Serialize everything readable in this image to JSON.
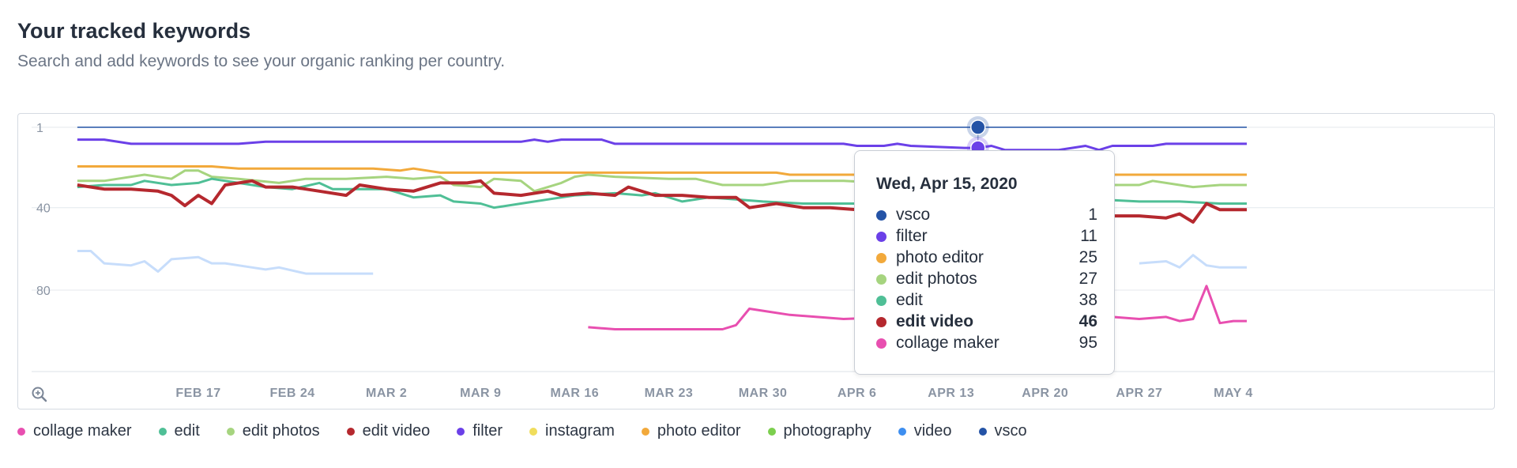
{
  "header": {
    "title": "Your tracked keywords",
    "subtitle": "Search and add keywords to see your organic ranking per country."
  },
  "zoom_icon": "zoom-in-icon",
  "tooltip": {
    "date": "Wed, Apr 15, 2020",
    "rows": [
      {
        "name": "vsco",
        "value": "1",
        "color": "#2453a6",
        "bold": false
      },
      {
        "name": "filter",
        "value": "11",
        "color": "#6b40e8",
        "bold": false
      },
      {
        "name": "photo editor",
        "value": "25",
        "color": "#f2a93b",
        "bold": false
      },
      {
        "name": "edit photos",
        "value": "27",
        "color": "#a6d47f",
        "bold": false
      },
      {
        "name": "edit",
        "value": "38",
        "color": "#4fbf96",
        "bold": false
      },
      {
        "name": "edit video",
        "value": "46",
        "color": "#b5282e",
        "bold": true
      },
      {
        "name": "collage maker",
        "value": "95",
        "color": "#e84fb0",
        "bold": false
      }
    ]
  },
  "legend": [
    {
      "name": "collage maker",
      "color": "#e84fb0"
    },
    {
      "name": "edit",
      "color": "#4fbf96"
    },
    {
      "name": "edit photos",
      "color": "#a6d47f"
    },
    {
      "name": "edit video",
      "color": "#b5282e"
    },
    {
      "name": "filter",
      "color": "#6b40e8"
    },
    {
      "name": "instagram",
      "color": "#f0dd5c"
    },
    {
      "name": "photo editor",
      "color": "#f2a93b"
    },
    {
      "name": "photography",
      "color": "#7ccf4e"
    },
    {
      "name": "video",
      "color": "#3d8ef0"
    },
    {
      "name": "vsco",
      "color": "#2453a6"
    }
  ],
  "chart_data": {
    "type": "line",
    "x_type": "date",
    "x_start": "2020-02-08",
    "x_end": "2020-05-05",
    "xticks": [
      {
        "date": "2020-02-17",
        "label": "FEB 17"
      },
      {
        "date": "2020-02-24",
        "label": "FEB 24"
      },
      {
        "date": "2020-03-02",
        "label": "MAR 2"
      },
      {
        "date": "2020-03-09",
        "label": "MAR 9"
      },
      {
        "date": "2020-03-16",
        "label": "MAR 16"
      },
      {
        "date": "2020-03-23",
        "label": "MAR 23"
      },
      {
        "date": "2020-03-30",
        "label": "MAR 30"
      },
      {
        "date": "2020-04-06",
        "label": "APR 6"
      },
      {
        "date": "2020-04-13",
        "label": "APR 13"
      },
      {
        "date": "2020-04-20",
        "label": "APR 20"
      },
      {
        "date": "2020-04-27",
        "label": "APR 27"
      },
      {
        "date": "2020-05-04",
        "label": "MAY 4"
      }
    ],
    "y_reversed": true,
    "ylim": [
      1,
      120
    ],
    "yticks": [
      1,
      40,
      80
    ],
    "hover_date": "2020-04-15",
    "series": [
      {
        "name": "vsco",
        "color": "#2453a6",
        "width": 1.5,
        "points": [
          [
            "2020-02-08",
            1
          ],
          [
            "2020-05-05",
            1
          ]
        ]
      },
      {
        "name": "filter",
        "color": "#6b40e8",
        "width": 3,
        "points": [
          [
            "2020-02-08",
            7
          ],
          [
            "2020-02-10",
            7
          ],
          [
            "2020-02-12",
            9
          ],
          [
            "2020-02-20",
            9
          ],
          [
            "2020-02-22",
            8
          ],
          [
            "2020-03-12",
            8
          ],
          [
            "2020-03-13",
            7
          ],
          [
            "2020-03-14",
            8
          ],
          [
            "2020-03-15",
            7
          ],
          [
            "2020-03-18",
            7
          ],
          [
            "2020-03-19",
            9
          ],
          [
            "2020-04-05",
            9
          ],
          [
            "2020-04-06",
            10
          ],
          [
            "2020-04-08",
            10
          ],
          [
            "2020-04-09",
            9
          ],
          [
            "2020-04-10",
            10
          ],
          [
            "2020-04-14",
            11
          ],
          [
            "2020-04-15",
            11
          ],
          [
            "2020-04-16",
            10
          ],
          [
            "2020-04-17",
            12
          ],
          [
            "2020-04-20",
            12
          ],
          [
            "2020-04-21",
            12
          ],
          [
            "2020-04-22",
            11
          ],
          [
            "2020-04-23",
            10
          ],
          [
            "2020-04-24",
            12
          ],
          [
            "2020-04-25",
            10
          ],
          [
            "2020-04-28",
            10
          ],
          [
            "2020-04-29",
            9
          ],
          [
            "2020-05-05",
            9
          ]
        ]
      },
      {
        "name": "photo editor",
        "color": "#f2a93b",
        "width": 3,
        "points": [
          [
            "2020-02-08",
            20
          ],
          [
            "2020-02-18",
            20
          ],
          [
            "2020-02-20",
            21
          ],
          [
            "2020-03-01",
            21
          ],
          [
            "2020-03-03",
            22
          ],
          [
            "2020-03-04",
            21
          ],
          [
            "2020-03-06",
            23
          ],
          [
            "2020-03-31",
            23
          ],
          [
            "2020-04-01",
            24
          ],
          [
            "2020-04-10",
            24
          ],
          [
            "2020-04-15",
            25
          ],
          [
            "2020-04-19",
            25
          ],
          [
            "2020-04-20",
            23
          ],
          [
            "2020-04-21",
            24
          ],
          [
            "2020-05-05",
            24
          ]
        ]
      },
      {
        "name": "edit photos",
        "color": "#a6d47f",
        "width": 3,
        "points": [
          [
            "2020-02-08",
            27
          ],
          [
            "2020-02-10",
            27
          ],
          [
            "2020-02-11",
            26
          ],
          [
            "2020-02-13",
            24
          ],
          [
            "2020-02-15",
            26
          ],
          [
            "2020-02-16",
            22
          ],
          [
            "2020-02-17",
            22
          ],
          [
            "2020-02-18",
            25
          ],
          [
            "2020-02-20",
            26
          ],
          [
            "2020-02-23",
            28
          ],
          [
            "2020-02-25",
            26
          ],
          [
            "2020-02-28",
            26
          ],
          [
            "2020-03-02",
            25
          ],
          [
            "2020-03-04",
            26
          ],
          [
            "2020-03-06",
            25
          ],
          [
            "2020-03-07",
            29
          ],
          [
            "2020-03-09",
            30
          ],
          [
            "2020-03-10",
            26
          ],
          [
            "2020-03-12",
            27
          ],
          [
            "2020-03-13",
            32
          ],
          [
            "2020-03-15",
            28
          ],
          [
            "2020-03-16",
            25
          ],
          [
            "2020-03-17",
            24
          ],
          [
            "2020-03-19",
            25
          ],
          [
            "2020-03-23",
            26
          ],
          [
            "2020-03-25",
            26
          ],
          [
            "2020-03-27",
            29
          ],
          [
            "2020-03-30",
            29
          ],
          [
            "2020-04-01",
            27
          ],
          [
            "2020-04-05",
            27
          ],
          [
            "2020-04-08",
            28
          ],
          [
            "2020-04-12",
            29
          ],
          [
            "2020-04-13",
            30
          ],
          [
            "2020-04-15",
            27
          ],
          [
            "2020-04-16",
            25
          ],
          [
            "2020-04-17",
            23
          ],
          [
            "2020-04-19",
            26
          ],
          [
            "2020-04-21",
            30
          ],
          [
            "2020-04-23",
            31
          ],
          [
            "2020-04-25",
            29
          ],
          [
            "2020-04-27",
            29
          ],
          [
            "2020-04-28",
            27
          ],
          [
            "2020-04-30",
            29
          ],
          [
            "2020-05-01",
            30
          ],
          [
            "2020-05-03",
            29
          ],
          [
            "2020-05-05",
            29
          ]
        ]
      },
      {
        "name": "edit",
        "color": "#4fbf96",
        "width": 3,
        "points": [
          [
            "2020-02-08",
            30
          ],
          [
            "2020-02-10",
            29
          ],
          [
            "2020-02-12",
            29
          ],
          [
            "2020-02-13",
            27
          ],
          [
            "2020-02-15",
            29
          ],
          [
            "2020-02-17",
            28
          ],
          [
            "2020-02-18",
            26
          ],
          [
            "2020-02-20",
            28
          ],
          [
            "2020-02-22",
            30
          ],
          [
            "2020-02-24",
            31
          ],
          [
            "2020-02-26",
            28
          ],
          [
            "2020-02-27",
            31
          ],
          [
            "2020-03-02",
            31
          ],
          [
            "2020-03-04",
            35
          ],
          [
            "2020-03-06",
            34
          ],
          [
            "2020-03-07",
            37
          ],
          [
            "2020-03-09",
            38
          ],
          [
            "2020-03-10",
            40
          ],
          [
            "2020-03-12",
            38
          ],
          [
            "2020-03-14",
            36
          ],
          [
            "2020-03-16",
            34
          ],
          [
            "2020-03-19",
            33
          ],
          [
            "2020-03-21",
            34
          ],
          [
            "2020-03-22",
            33
          ],
          [
            "2020-03-24",
            37
          ],
          [
            "2020-03-26",
            35
          ],
          [
            "2020-03-28",
            36
          ],
          [
            "2020-03-30",
            37
          ],
          [
            "2020-04-02",
            38
          ],
          [
            "2020-04-06",
            38
          ],
          [
            "2020-04-10",
            37
          ],
          [
            "2020-04-13",
            38
          ],
          [
            "2020-04-15",
            38
          ],
          [
            "2020-04-18",
            37
          ],
          [
            "2020-04-21",
            37
          ],
          [
            "2020-04-24",
            36
          ],
          [
            "2020-04-27",
            37
          ],
          [
            "2020-04-30",
            37
          ],
          [
            "2020-05-03",
            38
          ],
          [
            "2020-05-05",
            38
          ]
        ]
      },
      {
        "name": "edit video",
        "color": "#b5282e",
        "width": 4,
        "points": [
          [
            "2020-02-08",
            29
          ],
          [
            "2020-02-10",
            31
          ],
          [
            "2020-02-12",
            31
          ],
          [
            "2020-02-14",
            32
          ],
          [
            "2020-02-15",
            34
          ],
          [
            "2020-02-16",
            39
          ],
          [
            "2020-02-17",
            34
          ],
          [
            "2020-02-18",
            38
          ],
          [
            "2020-02-19",
            29
          ],
          [
            "2020-02-21",
            27
          ],
          [
            "2020-02-22",
            30
          ],
          [
            "2020-02-24",
            30
          ],
          [
            "2020-02-26",
            32
          ],
          [
            "2020-02-28",
            34
          ],
          [
            "2020-02-29",
            29
          ],
          [
            "2020-03-02",
            31
          ],
          [
            "2020-03-04",
            32
          ],
          [
            "2020-03-06",
            28
          ],
          [
            "2020-03-08",
            28
          ],
          [
            "2020-03-09",
            27
          ],
          [
            "2020-03-10",
            33
          ],
          [
            "2020-03-12",
            34
          ],
          [
            "2020-03-14",
            32
          ],
          [
            "2020-03-15",
            34
          ],
          [
            "2020-03-17",
            33
          ],
          [
            "2020-03-19",
            34
          ],
          [
            "2020-03-20",
            30
          ],
          [
            "2020-03-22",
            34
          ],
          [
            "2020-03-24",
            34
          ],
          [
            "2020-03-26",
            35
          ],
          [
            "2020-03-28",
            35
          ],
          [
            "2020-03-29",
            40
          ],
          [
            "2020-03-31",
            38
          ],
          [
            "2020-04-02",
            40
          ],
          [
            "2020-04-04",
            40
          ],
          [
            "2020-04-06",
            41
          ],
          [
            "2020-04-08",
            43
          ],
          [
            "2020-04-10",
            44
          ],
          [
            "2020-04-12",
            45
          ],
          [
            "2020-04-14",
            45
          ],
          [
            "2020-04-15",
            46
          ],
          [
            "2020-04-16",
            41
          ],
          [
            "2020-04-17",
            44
          ],
          [
            "2020-04-19",
            44
          ],
          [
            "2020-04-21",
            42
          ],
          [
            "2020-04-23",
            43
          ],
          [
            "2020-04-25",
            44
          ],
          [
            "2020-04-27",
            44
          ],
          [
            "2020-04-29",
            45
          ],
          [
            "2020-04-30",
            43
          ],
          [
            "2020-05-01",
            47
          ],
          [
            "2020-05-02",
            38
          ],
          [
            "2020-05-03",
            41
          ],
          [
            "2020-05-05",
            41
          ]
        ]
      },
      {
        "name": "collage maker",
        "color": "#e84fb0",
        "width": 3,
        "points": [
          [
            "2020-03-17",
            98
          ],
          [
            "2020-03-19",
            99
          ],
          [
            "2020-03-27",
            99
          ],
          [
            "2020-03-28",
            97
          ],
          [
            "2020-03-29",
            89
          ],
          [
            "2020-03-30",
            90
          ],
          [
            "2020-04-01",
            92
          ],
          [
            "2020-04-05",
            94
          ],
          [
            "2020-04-09",
            93
          ],
          [
            "2020-04-13",
            95
          ],
          [
            "2020-04-15",
            95
          ],
          [
            "2020-04-17",
            96
          ],
          [
            "2020-04-19",
            95
          ],
          [
            "2020-04-21",
            94
          ],
          [
            "2020-04-23",
            94
          ],
          [
            "2020-04-25",
            93
          ],
          [
            "2020-04-27",
            94
          ],
          [
            "2020-04-29",
            93
          ],
          [
            "2020-04-30",
            95
          ],
          [
            "2020-05-01",
            94
          ],
          [
            "2020-05-02",
            78
          ],
          [
            "2020-05-03",
            96
          ],
          [
            "2020-05-04",
            95
          ],
          [
            "2020-05-05",
            95
          ]
        ]
      },
      {
        "name": "video",
        "color": "#c7ddfb",
        "width": 3,
        "points": [
          [
            "2020-02-08",
            61
          ],
          [
            "2020-02-09",
            61
          ],
          [
            "2020-02-10",
            67
          ],
          [
            "2020-02-12",
            68
          ],
          [
            "2020-02-13",
            66
          ],
          [
            "2020-02-14",
            71
          ],
          [
            "2020-02-15",
            65
          ],
          [
            "2020-02-17",
            64
          ],
          [
            "2020-02-18",
            67
          ],
          [
            "2020-02-19",
            67
          ],
          [
            "2020-02-21",
            69
          ],
          [
            "2020-02-22",
            70
          ],
          [
            "2020-02-23",
            69
          ],
          [
            "2020-02-25",
            72
          ],
          [
            "2020-03-01",
            72
          ]
        ]
      },
      {
        "name": "video",
        "color": "#c7ddfb",
        "width": 3,
        "points": [
          [
            "2020-04-27",
            67
          ],
          [
            "2020-04-29",
            66
          ],
          [
            "2020-04-30",
            69
          ],
          [
            "2020-05-01",
            63
          ],
          [
            "2020-05-02",
            68
          ],
          [
            "2020-05-03",
            69
          ],
          [
            "2020-05-05",
            69
          ]
        ]
      }
    ]
  }
}
